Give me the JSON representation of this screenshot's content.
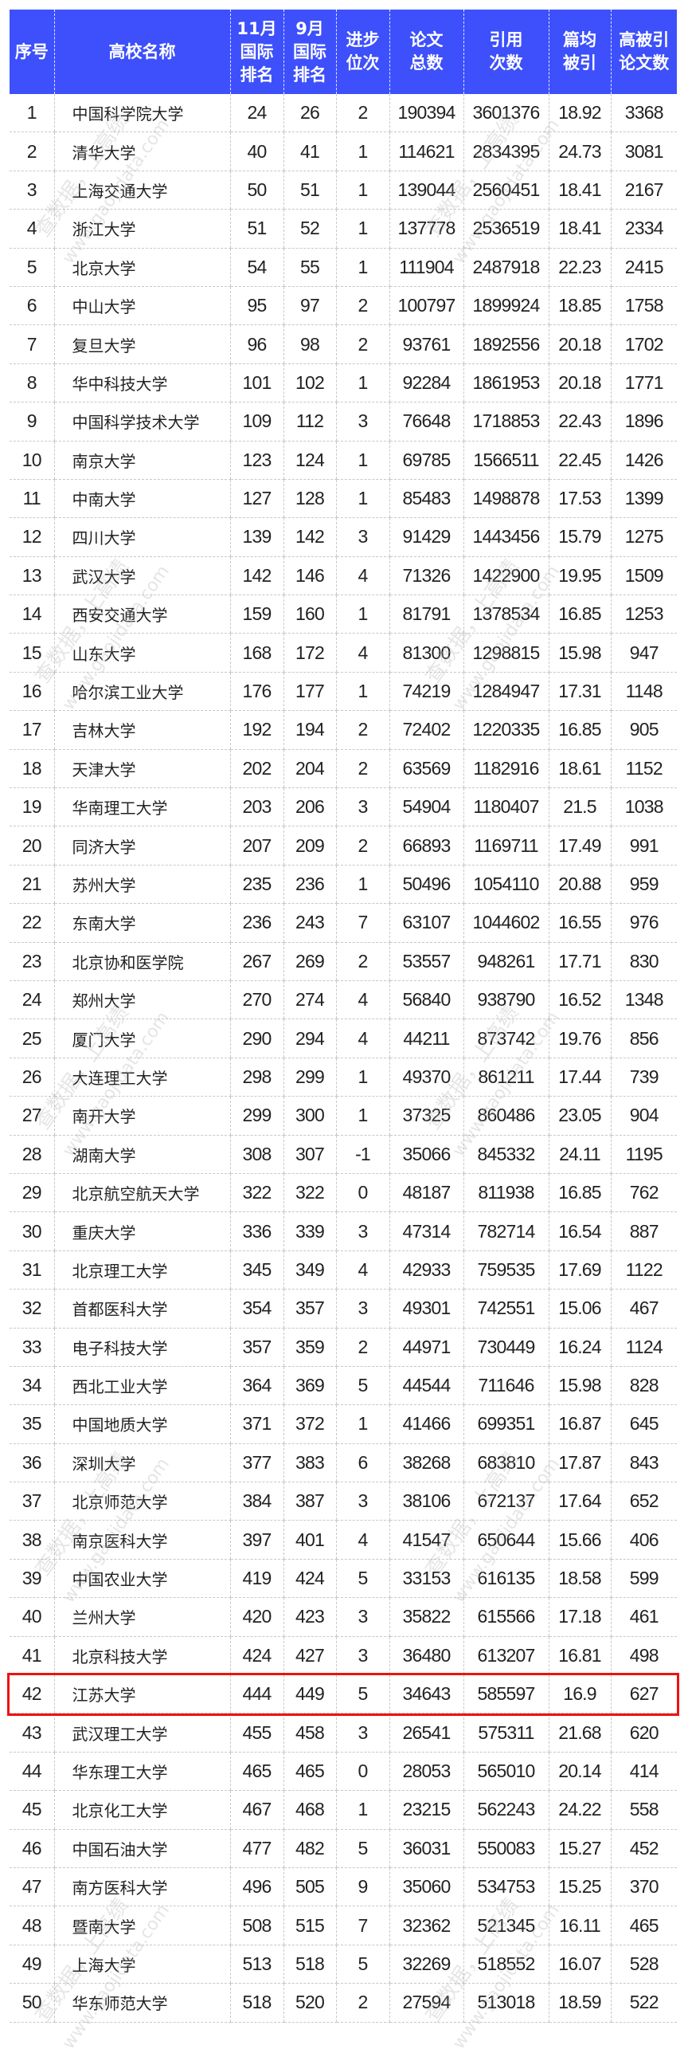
{
  "colors": {
    "accent": "#3d50fb",
    "highlight": "#f01010"
  },
  "highlight_rank": "42",
  "headers": [
    "序号",
    "高校名称",
    "11月\n国际\n排名",
    "9月\n国际\n排名",
    "进步\n位次",
    "论文\n总数",
    "引用\n次数",
    "篇均\n被引",
    "高被引\n论文数"
  ],
  "rows": [
    [
      "1",
      "中国科学院大学",
      "24",
      "26",
      "2",
      "190394",
      "3601376",
      "18.92",
      "3368"
    ],
    [
      "2",
      "清华大学",
      "40",
      "41",
      "1",
      "114621",
      "2834395",
      "24.73",
      "3081"
    ],
    [
      "3",
      "上海交通大学",
      "50",
      "51",
      "1",
      "139044",
      "2560451",
      "18.41",
      "2167"
    ],
    [
      "4",
      "浙江大学",
      "51",
      "52",
      "1",
      "137778",
      "2536519",
      "18.41",
      "2334"
    ],
    [
      "5",
      "北京大学",
      "54",
      "55",
      "1",
      "111904",
      "2487918",
      "22.23",
      "2415"
    ],
    [
      "6",
      "中山大学",
      "95",
      "97",
      "2",
      "100797",
      "1899924",
      "18.85",
      "1758"
    ],
    [
      "7",
      "复旦大学",
      "96",
      "98",
      "2",
      "93761",
      "1892556",
      "20.18",
      "1702"
    ],
    [
      "8",
      "华中科技大学",
      "101",
      "102",
      "1",
      "92284",
      "1861953",
      "20.18",
      "1771"
    ],
    [
      "9",
      "中国科学技术大学",
      "109",
      "112",
      "3",
      "76648",
      "1718853",
      "22.43",
      "1896"
    ],
    [
      "10",
      "南京大学",
      "123",
      "124",
      "1",
      "69785",
      "1566511",
      "22.45",
      "1426"
    ],
    [
      "11",
      "中南大学",
      "127",
      "128",
      "1",
      "85483",
      "1498878",
      "17.53",
      "1399"
    ],
    [
      "12",
      "四川大学",
      "139",
      "142",
      "3",
      "91429",
      "1443456",
      "15.79",
      "1275"
    ],
    [
      "13",
      "武汉大学",
      "142",
      "146",
      "4",
      "71326",
      "1422900",
      "19.95",
      "1509"
    ],
    [
      "14",
      "西安交通大学",
      "159",
      "160",
      "1",
      "81791",
      "1378534",
      "16.85",
      "1253"
    ],
    [
      "15",
      "山东大学",
      "168",
      "172",
      "4",
      "81300",
      "1298815",
      "15.98",
      "947"
    ],
    [
      "16",
      "哈尔滨工业大学",
      "176",
      "177",
      "1",
      "74219",
      "1284947",
      "17.31",
      "1148"
    ],
    [
      "17",
      "吉林大学",
      "192",
      "194",
      "2",
      "72402",
      "1220335",
      "16.85",
      "905"
    ],
    [
      "18",
      "天津大学",
      "202",
      "204",
      "2",
      "63569",
      "1182916",
      "18.61",
      "1152"
    ],
    [
      "19",
      "华南理工大学",
      "203",
      "206",
      "3",
      "54904",
      "1180407",
      "21.5",
      "1038"
    ],
    [
      "20",
      "同济大学",
      "207",
      "209",
      "2",
      "66893",
      "1169711",
      "17.49",
      "991"
    ],
    [
      "21",
      "苏州大学",
      "235",
      "236",
      "1",
      "50496",
      "1054110",
      "20.88",
      "959"
    ],
    [
      "22",
      "东南大学",
      "236",
      "243",
      "7",
      "63107",
      "1044602",
      "16.55",
      "976"
    ],
    [
      "23",
      "北京协和医学院",
      "267",
      "269",
      "2",
      "53557",
      "948261",
      "17.71",
      "830"
    ],
    [
      "24",
      "郑州大学",
      "270",
      "274",
      "4",
      "56840",
      "938790",
      "16.52",
      "1348"
    ],
    [
      "25",
      "厦门大学",
      "290",
      "294",
      "4",
      "44211",
      "873742",
      "19.76",
      "856"
    ],
    [
      "26",
      "大连理工大学",
      "298",
      "299",
      "1",
      "49370",
      "861211",
      "17.44",
      "739"
    ],
    [
      "27",
      "南开大学",
      "299",
      "300",
      "1",
      "37325",
      "860486",
      "23.05",
      "904"
    ],
    [
      "28",
      "湖南大学",
      "308",
      "307",
      "-1",
      "35066",
      "845332",
      "24.11",
      "1195"
    ],
    [
      "29",
      "北京航空航天大学",
      "322",
      "322",
      "0",
      "48187",
      "811938",
      "16.85",
      "762"
    ],
    [
      "30",
      "重庆大学",
      "336",
      "339",
      "3",
      "47314",
      "782714",
      "16.54",
      "887"
    ],
    [
      "31",
      "北京理工大学",
      "345",
      "349",
      "4",
      "42933",
      "759535",
      "17.69",
      "1122"
    ],
    [
      "32",
      "首都医科大学",
      "354",
      "357",
      "3",
      "49301",
      "742551",
      "15.06",
      "467"
    ],
    [
      "33",
      "电子科技大学",
      "357",
      "359",
      "2",
      "44971",
      "730449",
      "16.24",
      "1124"
    ],
    [
      "34",
      "西北工业大学",
      "364",
      "369",
      "5",
      "44544",
      "711646",
      "15.98",
      "828"
    ],
    [
      "35",
      "中国地质大学",
      "371",
      "372",
      "1",
      "41466",
      "699351",
      "16.87",
      "645"
    ],
    [
      "36",
      "深圳大学",
      "377",
      "383",
      "6",
      "38268",
      "683810",
      "17.87",
      "843"
    ],
    [
      "37",
      "北京师范大学",
      "384",
      "387",
      "3",
      "38106",
      "672137",
      "17.64",
      "652"
    ],
    [
      "38",
      "南京医科大学",
      "397",
      "401",
      "4",
      "41547",
      "650644",
      "15.66",
      "406"
    ],
    [
      "39",
      "中国农业大学",
      "419",
      "424",
      "5",
      "33153",
      "616135",
      "18.58",
      "599"
    ],
    [
      "40",
      "兰州大学",
      "420",
      "423",
      "3",
      "35822",
      "615566",
      "17.18",
      "461"
    ],
    [
      "41",
      "北京科技大学",
      "424",
      "427",
      "3",
      "36480",
      "613207",
      "16.81",
      "498"
    ],
    [
      "42",
      "江苏大学",
      "444",
      "449",
      "5",
      "34643",
      "585597",
      "16.9",
      "627"
    ],
    [
      "43",
      "武汉理工大学",
      "455",
      "458",
      "3",
      "26541",
      "575311",
      "21.68",
      "620"
    ],
    [
      "44",
      "华东理工大学",
      "465",
      "465",
      "0",
      "28053",
      "565010",
      "20.14",
      "414"
    ],
    [
      "45",
      "北京化工大学",
      "467",
      "468",
      "1",
      "23215",
      "562243",
      "24.22",
      "558"
    ],
    [
      "46",
      "中国石油大学",
      "477",
      "482",
      "5",
      "36031",
      "550083",
      "15.27",
      "452"
    ],
    [
      "47",
      "南方医科大学",
      "496",
      "505",
      "9",
      "35060",
      "534753",
      "15.25",
      "370"
    ],
    [
      "48",
      "暨南大学",
      "508",
      "515",
      "7",
      "32362",
      "521345",
      "16.11",
      "465"
    ],
    [
      "49",
      "上海大学",
      "513",
      "518",
      "5",
      "32269",
      "518552",
      "16.07",
      "528"
    ],
    [
      "50",
      "华东师范大学",
      "518",
      "520",
      "2",
      "27594",
      "513018",
      "18.59",
      "522"
    ]
  ],
  "watermark": {
    "line1": "查数据，上高绩",
    "line2": "www.gaojidata.com"
  }
}
